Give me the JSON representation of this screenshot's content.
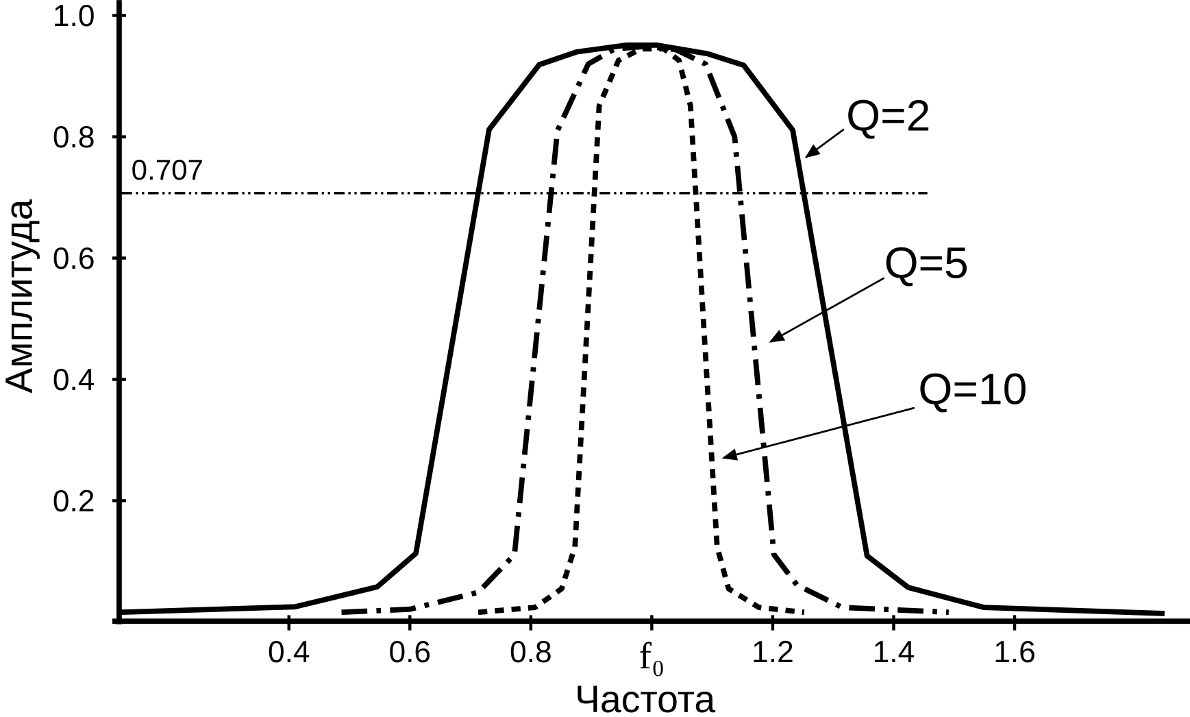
{
  "chart_data": {
    "type": "line",
    "x_label": "Частота",
    "y_label": "Амплитуда",
    "xlim": [
      0.12,
      1.89
    ],
    "ylim": [
      0,
      1.025
    ],
    "xticks": [
      0.4,
      0.6,
      0.8,
      {
        "value": 1.0,
        "label": "f₀"
      },
      1.2,
      1.4,
      1.6
    ],
    "yticks": [
      0.2,
      0.4,
      0.6,
      0.8,
      {
        "value": 1.0,
        "label": "1.0"
      }
    ],
    "reference_line": {
      "value": 0.707,
      "label": "0.707"
    },
    "series": [
      {
        "name": "Q=2",
        "color": "#000000",
        "dash": "solid",
        "x": [
          0.119,
          0.41,
          0.546,
          0.61,
          0.731,
          0.814,
          0.876,
          0.957,
          1.009,
          1.092,
          1.152,
          1.233,
          1.356,
          1.424,
          1.549,
          1.848
        ],
        "values": [
          0.016,
          0.025,
          0.058,
          0.113,
          0.812,
          0.919,
          0.94,
          0.951,
          0.951,
          0.937,
          0.918,
          0.811,
          0.109,
          0.057,
          0.024,
          0.014
        ]
      },
      {
        "name": "Q=5",
        "color": "#000000",
        "dash": "dashdot",
        "x": [
          0.487,
          0.6,
          0.713,
          0.773,
          0.844,
          0.895,
          0.939,
          0.989,
          1.039,
          1.089,
          1.137,
          1.202,
          1.24,
          1.315,
          1.491
        ],
        "values": [
          0.016,
          0.021,
          0.049,
          0.111,
          0.81,
          0.92,
          0.945,
          0.949,
          0.944,
          0.92,
          0.8,
          0.111,
          0.061,
          0.024,
          0.016
        ]
      },
      {
        "name": "Q=10",
        "color": "#000000",
        "dash": "dotted",
        "x": [
          0.713,
          0.807,
          0.851,
          0.873,
          0.913,
          0.945,
          0.982,
          1.02,
          1.045,
          1.064,
          1.108,
          1.127,
          1.177,
          1.252
        ],
        "values": [
          0.016,
          0.024,
          0.055,
          0.124,
          0.851,
          0.926,
          0.945,
          0.945,
          0.926,
          0.851,
          0.124,
          0.055,
          0.024,
          0.016
        ]
      }
    ]
  }
}
